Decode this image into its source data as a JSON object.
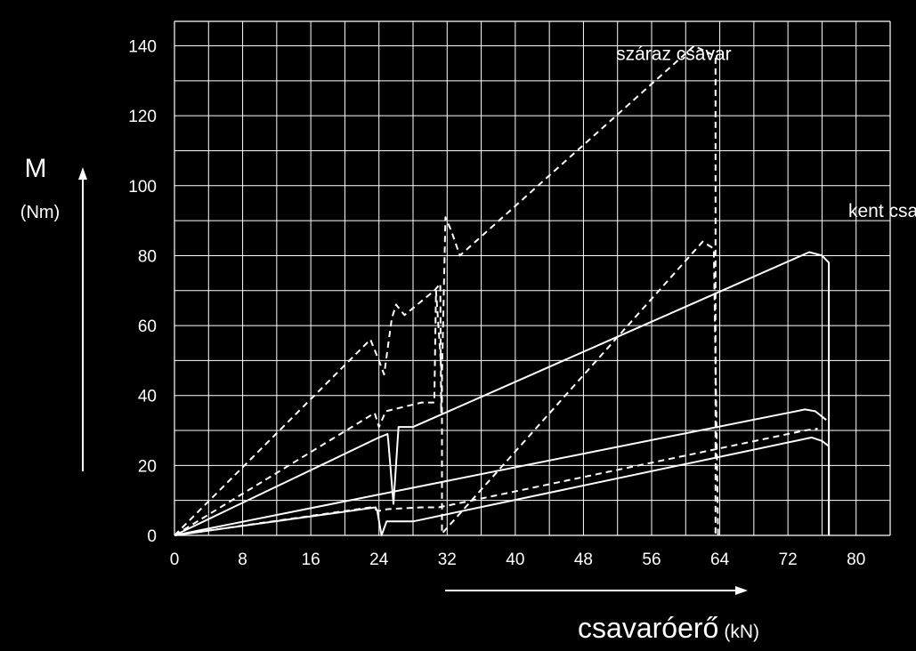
{
  "chart_data": {
    "type": "line",
    "ylabel": "M",
    "yunit": "(Nm)",
    "xlabel_main": "csavaróerő",
    "xlabel_unit": "(kN)",
    "xlim": [
      0,
      84
    ],
    "ylim": [
      0,
      147
    ],
    "grid": true,
    "xticks": [
      0,
      8,
      16,
      24,
      32,
      40,
      48,
      56,
      64,
      72,
      80
    ],
    "yticks": [
      0,
      20,
      40,
      60,
      80,
      100,
      120,
      140
    ],
    "annotations": [
      {
        "text": "száraz csavar",
        "x": 58.6,
        "y": 136
      },
      {
        "text": "kent csavar",
        "x": 84.7,
        "y": 91
      }
    ],
    "series": [
      {
        "style": "dashed",
        "points": [
          [
            0,
            0
          ],
          [
            23,
            56
          ],
          [
            24,
            50
          ],
          [
            24.6,
            46
          ],
          [
            25.5,
            62
          ],
          [
            26,
            66
          ],
          [
            27,
            63
          ],
          [
            30.5,
            70
          ],
          [
            31.2,
            72
          ],
          [
            31.3,
            35
          ],
          [
            31.8,
            91
          ],
          [
            32.5,
            87
          ],
          [
            33.5,
            80
          ],
          [
            61,
            140
          ],
          [
            63.5,
            137
          ],
          [
            63.5,
            0
          ]
        ]
      },
      {
        "style": "dashed",
        "points": [
          [
            0,
            0
          ],
          [
            23.5,
            35
          ],
          [
            24,
            31
          ],
          [
            24.8,
            35.5
          ],
          [
            29,
            38
          ],
          [
            30.5,
            38
          ],
          [
            30.7,
            70
          ],
          [
            31.4,
            45
          ],
          [
            31.4,
            0.5
          ],
          [
            62,
            84
          ],
          [
            63.3,
            82
          ],
          [
            63.8,
            0
          ]
        ]
      },
      {
        "style": "dashed",
        "points": [
          [
            0,
            0
          ],
          [
            23,
            8
          ],
          [
            24,
            7
          ],
          [
            25,
            7.5
          ],
          [
            29,
            8
          ],
          [
            31,
            8
          ],
          [
            33,
            9
          ],
          [
            74,
            30
          ],
          [
            75.5,
            30.5
          ]
        ]
      },
      {
        "style": "solid",
        "points": [
          [
            0,
            0
          ],
          [
            24,
            28
          ],
          [
            25,
            29
          ],
          [
            25.1,
            27
          ],
          [
            25.7,
            9
          ],
          [
            26.3,
            31
          ],
          [
            28,
            31
          ],
          [
            74.5,
            81
          ],
          [
            76,
            80
          ],
          [
            76.8,
            78
          ],
          [
            76.8,
            0
          ]
        ]
      },
      {
        "style": "solid",
        "points": [
          [
            0,
            0
          ],
          [
            74,
            36
          ],
          [
            75.2,
            35.5
          ],
          [
            76.5,
            33
          ]
        ]
      },
      {
        "style": "solid",
        "points": [
          [
            0,
            0
          ],
          [
            23.6,
            8
          ],
          [
            23.8,
            7
          ],
          [
            24.3,
            0
          ],
          [
            24.9,
            4
          ],
          [
            28,
            4
          ],
          [
            74.8,
            28
          ],
          [
            76,
            27
          ],
          [
            76.8,
            25.5
          ],
          [
            76.8,
            0
          ]
        ]
      }
    ]
  }
}
